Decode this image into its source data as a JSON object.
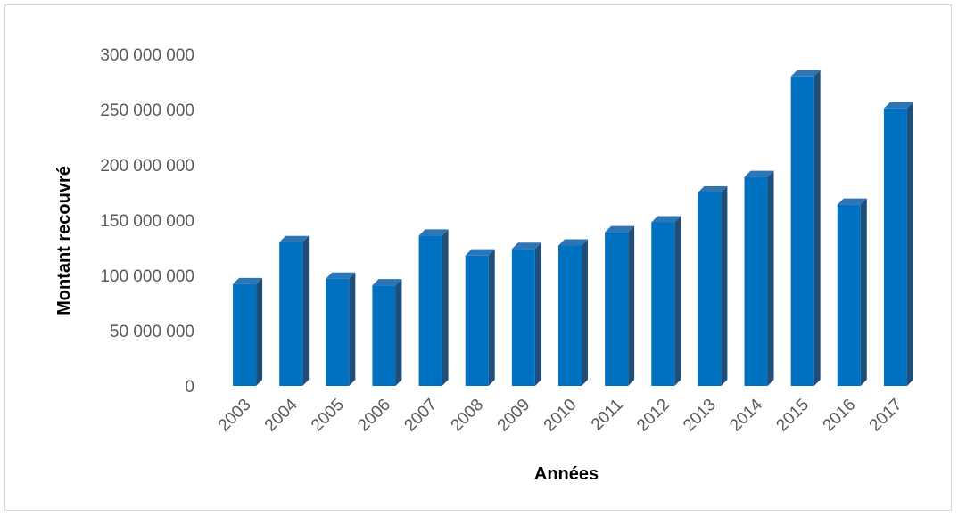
{
  "chart_data": {
    "type": "bar",
    "categories": [
      "2003",
      "2004",
      "2005",
      "2006",
      "2007",
      "2008",
      "2009",
      "2010",
      "2011",
      "2012",
      "2013",
      "2014",
      "2015",
      "2016",
      "2017"
    ],
    "values": [
      92000000,
      130000000,
      97000000,
      91000000,
      136000000,
      118000000,
      124000000,
      127000000,
      139000000,
      148000000,
      175000000,
      189000000,
      280000000,
      164000000,
      251000000
    ],
    "title": "",
    "xlabel": "Années",
    "ylabel": "Montant recouvré",
    "ylim": [
      0,
      300000000
    ],
    "yticks": [
      0,
      50000000,
      100000000,
      150000000,
      200000000,
      250000000,
      300000000
    ],
    "ytick_labels": [
      "0",
      "50 000 000",
      "100 000 000",
      "150 000 000",
      "200 000 000",
      "250 000 000",
      "300 000 000"
    ],
    "grid": false,
    "legend": "none",
    "bar_style": "3d-column",
    "colors": {
      "bar_front": "#0070C0",
      "bar_side": "#1F4E79",
      "bar_top": "#2E75B6"
    }
  }
}
